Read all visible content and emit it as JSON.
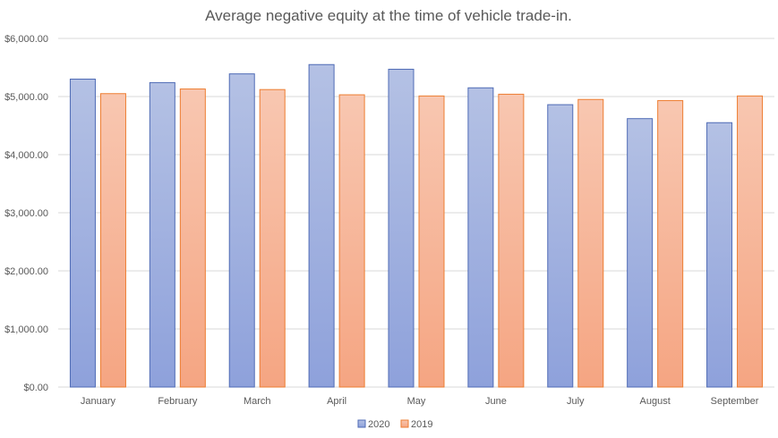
{
  "chart_data": {
    "type": "bar",
    "title": "Average negative equity at the time of vehicle trade-in.",
    "xlabel": "",
    "ylabel": "",
    "categories": [
      "January",
      "February",
      "March",
      "April",
      "May",
      "June",
      "July",
      "August",
      "September"
    ],
    "series": [
      {
        "name": "2020",
        "values": [
          5300,
          5240,
          5390,
          5550,
          5470,
          5150,
          4860,
          4620,
          4550
        ]
      },
      {
        "name": "2019",
        "values": [
          5050,
          5130,
          5120,
          5030,
          5010,
          5040,
          4950,
          4930,
          5010
        ]
      }
    ],
    "ylim": [
      0,
      6000
    ],
    "yticks": [
      "$0.00",
      "$1,000.00",
      "$2,000.00",
      "$3,000.00",
      "$4,000.00",
      "$5,000.00",
      "$6,000.00"
    ],
    "ytick_values": [
      0,
      1000,
      2000,
      3000,
      4000,
      5000,
      6000
    ],
    "grid": true,
    "legend_position": "bottom",
    "colors": {
      "2020_top": "#b4c1e4",
      "2020_bottom": "#8ea1db",
      "2020_stroke": "#4f6bb5",
      "2019_top": "#f8c7b1",
      "2019_bottom": "#f5a582",
      "2019_stroke": "#ed7d31",
      "grid": "#d9d9d9",
      "text": "#595959"
    }
  }
}
